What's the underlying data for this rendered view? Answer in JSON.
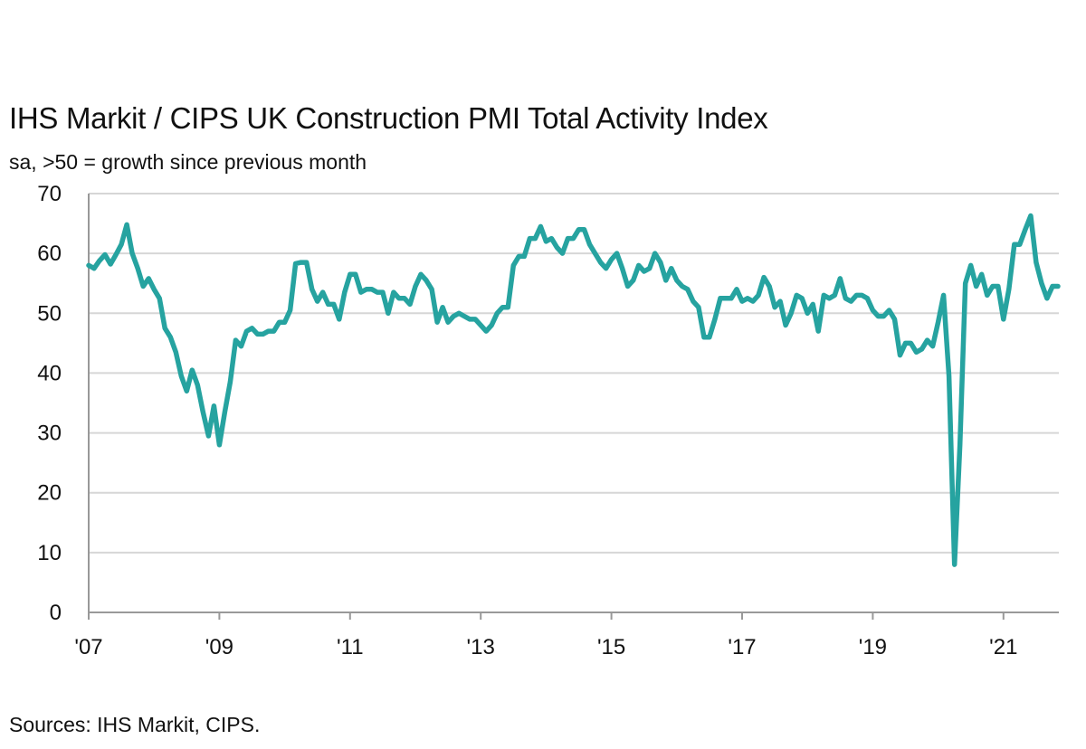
{
  "title": "IHS Markit / CIPS UK Construction PMI Total Activity Index",
  "subtitle": "sa, >50 = growth since previous month",
  "source": "Sources: IHS Markit, CIPS.",
  "chart_data": {
    "type": "line",
    "title": "IHS Markit / CIPS UK Construction PMI Total Activity Index",
    "subtitle": "sa, >50 = growth since previous month",
    "xlabel": "",
    "ylabel": "",
    "ylim": [
      0,
      70
    ],
    "yticks": [
      0,
      10,
      20,
      30,
      40,
      50,
      60,
      70
    ],
    "xlim": [
      "2007-01",
      "2021-11"
    ],
    "xticks": [
      {
        "label": "'07",
        "date": "2007-01"
      },
      {
        "label": "'09",
        "date": "2009-01"
      },
      {
        "label": "'11",
        "date": "2011-01"
      },
      {
        "label": "'13",
        "date": "2013-01"
      },
      {
        "label": "'15",
        "date": "2015-01"
      },
      {
        "label": "'17",
        "date": "2017-01"
      },
      {
        "label": "'19",
        "date": "2019-01"
      },
      {
        "label": "'21",
        "date": "2021-01"
      }
    ],
    "grid": true,
    "legend": "none",
    "line_color": "#26a3a0",
    "x": [
      "2007-01",
      "2007-02",
      "2007-03",
      "2007-04",
      "2007-05",
      "2007-06",
      "2007-07",
      "2007-08",
      "2007-09",
      "2007-10",
      "2007-11",
      "2007-12",
      "2008-01",
      "2008-02",
      "2008-03",
      "2008-04",
      "2008-05",
      "2008-06",
      "2008-07",
      "2008-08",
      "2008-09",
      "2008-10",
      "2008-11",
      "2008-12",
      "2009-01",
      "2009-02",
      "2009-03",
      "2009-04",
      "2009-05",
      "2009-06",
      "2009-07",
      "2009-08",
      "2009-09",
      "2009-10",
      "2009-11",
      "2009-12",
      "2010-01",
      "2010-02",
      "2010-03",
      "2010-04",
      "2010-05",
      "2010-06",
      "2010-07",
      "2010-08",
      "2010-09",
      "2010-10",
      "2010-11",
      "2010-12",
      "2011-01",
      "2011-02",
      "2011-03",
      "2011-04",
      "2011-05",
      "2011-06",
      "2011-07",
      "2011-08",
      "2011-09",
      "2011-10",
      "2011-11",
      "2011-12",
      "2012-01",
      "2012-02",
      "2012-03",
      "2012-04",
      "2012-05",
      "2012-06",
      "2012-07",
      "2012-08",
      "2012-09",
      "2012-10",
      "2012-11",
      "2012-12",
      "2013-01",
      "2013-02",
      "2013-03",
      "2013-04",
      "2013-05",
      "2013-06",
      "2013-07",
      "2013-08",
      "2013-09",
      "2013-10",
      "2013-11",
      "2013-12",
      "2014-01",
      "2014-02",
      "2014-03",
      "2014-04",
      "2014-05",
      "2014-06",
      "2014-07",
      "2014-08",
      "2014-09",
      "2014-10",
      "2014-11",
      "2014-12",
      "2015-01",
      "2015-02",
      "2015-03",
      "2015-04",
      "2015-05",
      "2015-06",
      "2015-07",
      "2015-08",
      "2015-09",
      "2015-10",
      "2015-11",
      "2015-12",
      "2016-01",
      "2016-02",
      "2016-03",
      "2016-04",
      "2016-05",
      "2016-06",
      "2016-07",
      "2016-08",
      "2016-09",
      "2016-10",
      "2016-11",
      "2016-12",
      "2017-01",
      "2017-02",
      "2017-03",
      "2017-04",
      "2017-05",
      "2017-06",
      "2017-07",
      "2017-08",
      "2017-09",
      "2017-10",
      "2017-11",
      "2017-12",
      "2018-01",
      "2018-02",
      "2018-03",
      "2018-04",
      "2018-05",
      "2018-06",
      "2018-07",
      "2018-08",
      "2018-09",
      "2018-10",
      "2018-11",
      "2018-12",
      "2019-01",
      "2019-02",
      "2019-03",
      "2019-04",
      "2019-05",
      "2019-06",
      "2019-07",
      "2019-08",
      "2019-09",
      "2019-10",
      "2019-11",
      "2019-12",
      "2020-01",
      "2020-02",
      "2020-03",
      "2020-04",
      "2020-05",
      "2020-06",
      "2020-07",
      "2020-08",
      "2020-09",
      "2020-10",
      "2020-11",
      "2020-12",
      "2021-01",
      "2021-02",
      "2021-03",
      "2021-04",
      "2021-05",
      "2021-06",
      "2021-07",
      "2021-08",
      "2021-09",
      "2021-10",
      "2021-11"
    ],
    "series": [
      {
        "values": [
          58.0,
          57.5,
          58.8,
          59.8,
          58.2,
          59.8,
          61.5,
          64.8,
          60.0,
          57.5,
          54.5,
          55.8,
          54.0,
          52.5,
          47.5,
          46.0,
          43.5,
          39.5,
          37.0,
          40.5,
          38.0,
          33.5,
          29.5,
          34.5,
          28.0,
          33.5,
          38.5,
          45.5,
          44.5,
          47.0,
          47.5,
          46.5,
          46.5,
          47.0,
          47.0,
          48.5,
          48.5,
          50.5,
          58.3,
          58.5,
          58.5,
          54.0,
          52.0,
          53.5,
          51.5,
          51.5,
          49.0,
          53.5,
          56.5,
          56.5,
          53.5,
          54.0,
          54.0,
          53.5,
          53.5,
          50.0,
          53.5,
          52.5,
          52.5,
          51.5,
          54.5,
          56.5,
          55.5,
          54.0,
          48.5,
          51.0,
          48.5,
          49.5,
          50.0,
          49.5,
          49.0,
          49.0,
          48.0,
          47.0,
          48.0,
          50.0,
          51.0,
          51.0,
          58.0,
          59.5,
          59.5,
          62.5,
          62.5,
          64.5,
          62.0,
          62.5,
          61.0,
          60.0,
          62.5,
          62.5,
          64.0,
          64.0,
          61.5,
          60.0,
          58.5,
          57.5,
          59.0,
          60.0,
          57.5,
          54.5,
          55.5,
          58.0,
          57.0,
          57.5,
          60.0,
          58.5,
          55.5,
          57.5,
          55.5,
          54.5,
          54.0,
          52.0,
          51.0,
          46.0,
          46.0,
          49.0,
          52.5,
          52.5,
          52.5,
          54.0,
          52.0,
          52.5,
          52.0,
          53.0,
          56.0,
          54.5,
          51.0,
          52.0,
          48.0,
          50.0,
          53.0,
          52.5,
          50.0,
          51.5,
          47.0,
          53.0,
          52.5,
          53.0,
          55.8,
          52.5,
          52.0,
          53.0,
          53.0,
          52.5,
          50.5,
          49.5,
          49.5,
          50.5,
          49.0,
          43.0,
          45.0,
          45.0,
          43.5,
          44.0,
          45.5,
          44.5,
          48.5,
          53.0,
          39.5,
          8.0,
          28.0,
          55.0,
          58.0,
          54.5,
          56.5,
          53.0,
          54.5,
          54.5,
          49.0,
          54.0,
          61.5,
          61.5,
          64.0,
          66.3,
          58.5,
          55.0,
          52.5,
          54.5,
          54.5
        ]
      }
    ]
  }
}
